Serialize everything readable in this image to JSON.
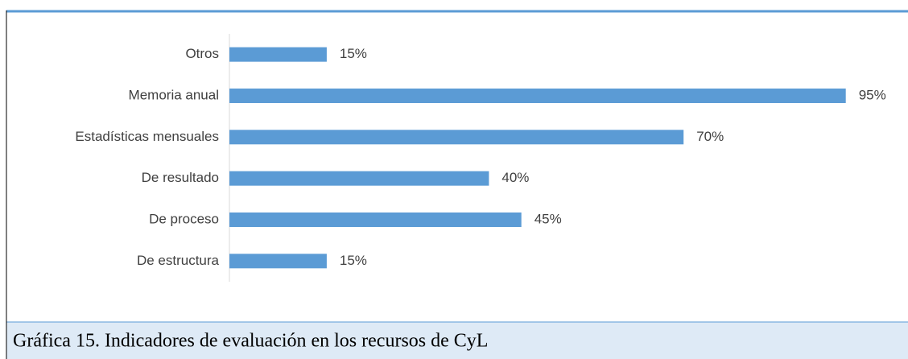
{
  "chart_data": {
    "type": "barh",
    "caption": "Gráfica 15. Indicadores de evaluación en los recursos de CyL",
    "categories": [
      "Otros",
      "Memoria anual",
      "Estadísticas mensuales",
      "De resultado",
      "De proceso",
      "De estructura"
    ],
    "values": [
      15,
      95,
      70,
      40,
      45,
      15
    ],
    "value_labels": [
      "15%",
      "95%",
      "70%",
      "40%",
      "45%",
      "15%"
    ],
    "color": "#5b9bd5",
    "xlim": [
      0,
      100
    ]
  }
}
